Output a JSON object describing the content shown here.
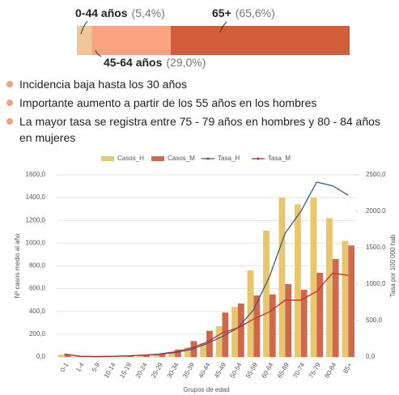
{
  "chart_data": [
    {
      "type": "stacked_bar",
      "categories": [
        "0-44 años",
        "45-64 años",
        "65+"
      ],
      "values": [
        5.4,
        29.0,
        65.6
      ],
      "value_labels": [
        "(5,4%)",
        "(29,0%)",
        "(65,6%)"
      ],
      "colors": [
        "#f0c79b",
        "#f9a383",
        "#d15d3b"
      ]
    },
    {
      "type": "combo",
      "categories": [
        "0-1",
        "1-4",
        "5-9",
        "10-14",
        "15-19",
        "20-24",
        "25-29",
        "30-34",
        "35-39",
        "40-44",
        "45-49",
        "50-54",
        "55-59",
        "60-64",
        "65-69",
        "70-74",
        "75-79",
        "80-84",
        "85+"
      ],
      "series": [
        {
          "name": "Casos_H",
          "type": "bar",
          "color": "#e8c66f",
          "values": [
            20,
            8,
            5,
            8,
            12,
            20,
            25,
            40,
            85,
            120,
            270,
            440,
            760,
            1110,
            1400,
            1340,
            1400,
            1220,
            1020
          ]
        },
        {
          "name": "Casos_M",
          "type": "bar",
          "color": "#d0694b",
          "values": [
            20,
            8,
            5,
            8,
            12,
            18,
            28,
            65,
            140,
            230,
            390,
            470,
            540,
            550,
            640,
            590,
            740,
            860,
            980
          ]
        },
        {
          "name": "Tasa_H",
          "type": "line",
          "axis": "y2",
          "color": "#3c5a8a",
          "values": [
            40,
            10,
            5,
            8,
            15,
            25,
            35,
            60,
            100,
            180,
            280,
            400,
            650,
            1100,
            1700,
            2000,
            2400,
            2350,
            2220
          ]
        },
        {
          "name": "Tasa_M",
          "type": "line",
          "axis": "y2",
          "color": "#c0302a",
          "values": [
            40,
            10,
            5,
            8,
            15,
            25,
            40,
            70,
            120,
            200,
            330,
            400,
            520,
            620,
            780,
            780,
            900,
            1150,
            1120
          ]
        }
      ],
      "ylabel": "Nº casos medio al año",
      "y2label": "Tasa por 100.000 hab",
      "xlabel": "Grupos de edad",
      "ylim": [
        0,
        1600
      ],
      "yticks": [
        {
          "value": 0,
          "label": "0,0"
        },
        {
          "value": 200,
          "label": "200,0"
        },
        {
          "value": 400,
          "label": "400,0"
        },
        {
          "value": 600,
          "label": "600,0"
        },
        {
          "value": 800,
          "label": "800,0"
        },
        {
          "value": 1000,
          "label": "1000,0"
        },
        {
          "value": 1200,
          "label": "1200,0"
        },
        {
          "value": 1400,
          "label": "1400,0"
        },
        {
          "value": 1600,
          "label": "1600,0"
        }
      ],
      "y2lim": [
        0,
        2500
      ],
      "y2ticks": [
        {
          "value": 0,
          "label": "0,0"
        },
        {
          "value": 500,
          "label": "500,0"
        },
        {
          "value": 1000,
          "label": "1000,0"
        },
        {
          "value": 1500,
          "label": "1500,0"
        },
        {
          "value": 2000,
          "label": "2000,0"
        },
        {
          "value": 2500,
          "label": "2500,0"
        }
      ],
      "grid": true
    }
  ],
  "bullets": [
    "Incidencia baja hasta los 30 años",
    "Importante aumento a partir de los 55 años en los hombres",
    "La mayor tasa se registra entre 75 - 79 años en hombres y 80 - 84 años en mujeres"
  ]
}
